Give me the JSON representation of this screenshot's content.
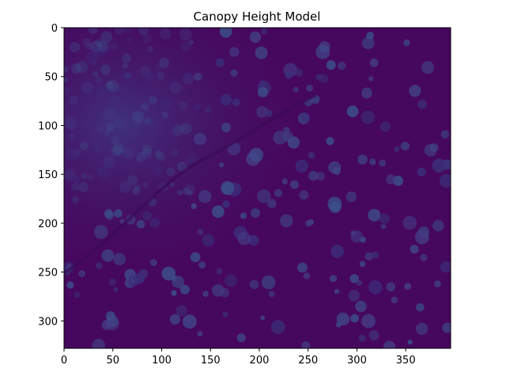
{
  "title": "Canopy Height Model",
  "chart_data": {
    "type": "heatmap",
    "title": "Canopy Height Model",
    "xlabel": "",
    "ylabel": "",
    "x_ticks": [
      0,
      50,
      100,
      150,
      200,
      250,
      300,
      350
    ],
    "y_ticks": [
      0,
      50,
      100,
      150,
      200,
      250,
      300
    ],
    "xlim": [
      0,
      396
    ],
    "ylim": [
      328,
      0
    ],
    "colormap": "viridis",
    "colors": {
      "background": "#46085e",
      "low": "#440154",
      "mid": "#3b2f7a",
      "high": "#3f4a8a"
    }
  }
}
